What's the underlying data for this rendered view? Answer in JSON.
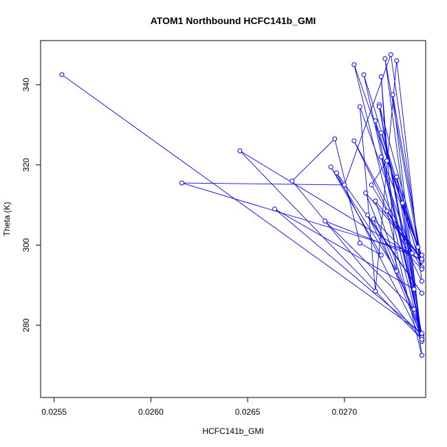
{
  "chart_data": {
    "type": "line",
    "title": "ATOM1 Northbound HCFC141b_GMI",
    "xlabel": "HCFC141b_GMI",
    "ylabel": "Theta (K)",
    "xlim": [
      0.02543,
      0.02742
    ],
    "ylim": [
      262.0,
      351.0
    ],
    "xticks": [
      0.0255,
      0.026,
      0.0265,
      0.027
    ],
    "xtick_labels": [
      "0.0255",
      "0.0260",
      "0.0265",
      "0.0270"
    ],
    "yticks": [
      280,
      300,
      320,
      340
    ],
    "ytick_labels": [
      "280",
      "300",
      "320",
      "340"
    ],
    "grid": false,
    "series": [
      {
        "name": "",
        "color": "#0000ff",
        "marker": "open-circle",
        "x": [
          0.02554,
          0.0274,
          0.02716,
          0.0274,
          0.02721,
          0.0274,
          0.02705,
          0.02738,
          0.02718,
          0.0274,
          0.02725,
          0.0274,
          0.0271,
          0.0274,
          0.02719,
          0.0274,
          0.02616,
          0.027,
          0.02724,
          0.0274,
          0.02715,
          0.0274,
          0.02727,
          0.0274,
          0.02646,
          0.0274,
          0.02716,
          0.0274,
          0.02711,
          0.0274,
          0.02664,
          0.02736,
          0.02718,
          0.0274,
          0.0273,
          0.0274,
          0.02722,
          0.0274,
          0.0269,
          0.02736,
          0.02712,
          0.0274,
          0.02696,
          0.0274,
          0.02673,
          0.02695,
          0.02708,
          0.02719,
          0.02693,
          0.02727,
          0.02719,
          0.02722,
          0.02714,
          0.02735,
          0.02708,
          0.02716,
          0.02727,
          0.0274,
          0.02705,
          0.0274,
          0.02719
        ],
        "y": [
          342.5,
          278.0,
          331.0,
          294.5,
          346.5,
          276.5,
          345.0,
          299.5,
          335.0,
          276.0,
          337.5,
          296.0,
          342.5,
          277.5,
          322.0,
          297.5,
          315.5,
          315.0,
          347.5,
          294.0,
          306.5,
          277.0,
          317.0,
          296.0,
          323.5,
          276.5,
          311.0,
          296.5,
          313.0,
          278.0,
          309.0,
          289.0,
          334.5,
          276.0,
          310.5,
          272.5,
          308.5,
          296.5,
          306.0,
          284.0,
          307.5,
          288.0,
          318.0,
          276.5,
          316.0,
          326.5,
          300.5,
          297.5,
          319.5,
          293.5,
          342.0,
          321.0,
          315.0,
          298.0,
          334.5,
          288.5,
          346.0,
          291.0,
          326.0,
          294.0,
          328.0
        ]
      }
    ]
  }
}
